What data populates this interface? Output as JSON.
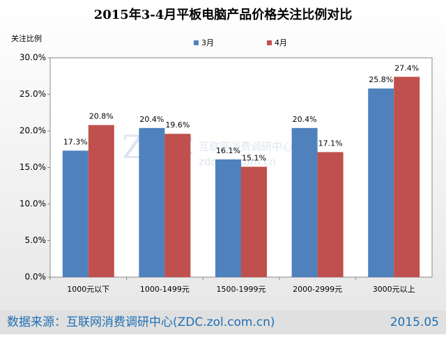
{
  "chart_data": {
    "type": "bar",
    "title": "2015年3-4月平板电脑产品价格关注比例对比",
    "y_label": "关注比例",
    "categories": [
      "1000元以下",
      "1000-1499元",
      "1500-1999元",
      "2000-2999元",
      "3000元以上"
    ],
    "series": [
      {
        "name": "3月",
        "color": "#4f81bd",
        "values": [
          17.3,
          20.4,
          16.1,
          20.4,
          25.8
        ],
        "value_labels": [
          "17.3%",
          "20.4%",
          "16.1%",
          "20.4%",
          "25.8%"
        ]
      },
      {
        "name": "4月",
        "color": "#c0504d",
        "values": [
          20.8,
          19.6,
          15.1,
          17.1,
          27.4
        ],
        "value_labels": [
          "20.8%",
          "19.6%",
          "15.1%",
          "17.1%",
          "27.4%"
        ]
      }
    ],
    "ylim": [
      0,
      30
    ],
    "yticks": [
      {
        "value": 0,
        "label": "0.0%"
      },
      {
        "value": 5,
        "label": "5.0%"
      },
      {
        "value": 10,
        "label": "10.0%"
      },
      {
        "value": 15,
        "label": "15.0%"
      },
      {
        "value": 20,
        "label": "20.0%"
      },
      {
        "value": 25,
        "label": "25.0%"
      },
      {
        "value": 30,
        "label": "30.0%"
      }
    ],
    "watermark": [
      "ZDC",
      "互联网消费调研中心",
      "zdc.zol.com.cn"
    ],
    "source": "数据来源：互联网消费调研中心(ZDC.zol.com.cn)",
    "date": "2015.05"
  }
}
